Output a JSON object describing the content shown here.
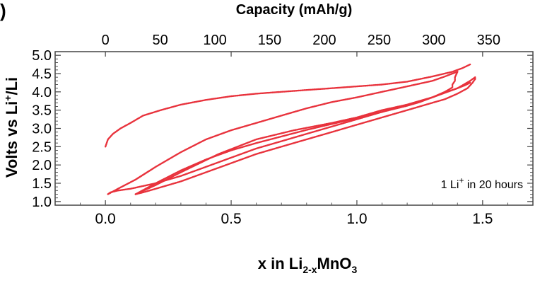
{
  "panel_label": ")",
  "chart_data": {
    "type": "line",
    "title": "",
    "xlabel": "x in Li2-xMnO3",
    "xlabel_parts": {
      "main": "x in Li",
      "sub": "2-x",
      "mid": "MnO",
      "sub2": "3"
    },
    "ylabel": "Volts vs Li+/Li",
    "ylabel_parts": {
      "pre": "Volts vs Li",
      "sup": "+",
      "post": "/Li"
    },
    "x2label": "Capacity (mAh/g)",
    "xlim": [
      -0.2,
      1.7
    ],
    "ylim": [
      0.9,
      5.1
    ],
    "x2_per_x": 229.7,
    "x_ticks": [
      "0.0",
      "0.5",
      "1.0",
      "1.5"
    ],
    "x_tick_values": [
      0.0,
      0.5,
      1.0,
      1.5
    ],
    "x2_ticks": [
      "0",
      "50",
      "100",
      "150",
      "200",
      "250",
      "300",
      "350"
    ],
    "x2_tick_values": [
      0,
      50,
      100,
      150,
      200,
      250,
      300,
      350
    ],
    "y_ticks": [
      "1.0",
      "1.5",
      "2.0",
      "2.5",
      "3.0",
      "3.5",
      "4.0",
      "4.5",
      "5.0"
    ],
    "y_tick_values": [
      1.0,
      1.5,
      2.0,
      2.5,
      3.0,
      3.5,
      4.0,
      4.5,
      5.0
    ],
    "annotation": {
      "pre": "1 Li",
      "sup": "+",
      "post": " in 20 hours"
    },
    "color": "#e8323c",
    "series": [
      {
        "x": [
          0.0,
          0.01,
          0.03,
          0.06,
          0.1,
          0.15,
          0.22,
          0.3,
          0.4,
          0.5,
          0.6,
          0.7,
          0.8,
          0.9,
          1.0,
          1.1,
          1.2,
          1.3,
          1.38,
          1.42,
          1.45
        ],
        "y": [
          2.5,
          2.7,
          2.85,
          3.0,
          3.15,
          3.35,
          3.5,
          3.65,
          3.78,
          3.88,
          3.95,
          4.0,
          4.05,
          4.1,
          4.15,
          4.2,
          4.28,
          4.42,
          4.55,
          4.65,
          4.75
        ]
      },
      {
        "x": [
          1.45,
          1.43,
          1.4,
          1.35,
          1.3,
          1.25,
          1.2,
          1.1,
          1.0,
          0.9,
          0.8,
          0.7,
          0.6,
          0.5,
          0.4,
          0.3,
          0.2,
          0.1,
          0.05,
          0.02,
          0.01
        ],
        "y": [
          4.25,
          4.18,
          4.1,
          3.98,
          3.85,
          3.75,
          3.65,
          3.45,
          3.25,
          3.05,
          2.85,
          2.65,
          2.45,
          2.2,
          1.95,
          1.7,
          1.5,
          1.35,
          1.3,
          1.25,
          1.2
        ]
      },
      {
        "x": [
          0.01,
          0.05,
          0.12,
          0.2,
          0.3,
          0.4,
          0.5,
          0.6,
          0.7,
          0.8,
          0.9,
          1.0,
          1.1,
          1.2,
          1.3,
          1.35,
          1.38,
          1.4
        ],
        "y": [
          1.2,
          1.35,
          1.6,
          1.95,
          2.35,
          2.7,
          2.95,
          3.15,
          3.35,
          3.55,
          3.72,
          3.85,
          4.0,
          4.15,
          4.3,
          4.42,
          4.5,
          4.55
        ]
      },
      {
        "x": [
          1.4,
          1.39,
          1.39,
          1.38,
          1.38,
          1.35,
          1.3,
          1.25,
          1.2,
          1.1,
          1.0,
          0.9,
          0.8,
          0.7,
          0.6,
          0.5,
          0.4,
          0.3,
          0.2,
          0.12
        ],
        "y": [
          4.55,
          4.4,
          4.3,
          4.2,
          4.12,
          4.0,
          3.85,
          3.72,
          3.62,
          3.45,
          3.28,
          3.12,
          2.96,
          2.78,
          2.6,
          2.4,
          2.15,
          1.85,
          1.5,
          1.2
        ]
      },
      {
        "x": [
          0.12,
          0.2,
          0.3,
          0.45,
          0.6,
          0.75,
          0.9,
          1.0,
          1.1,
          1.2,
          1.3,
          1.4,
          1.45,
          1.47,
          1.47
        ],
        "y": [
          1.2,
          1.45,
          1.8,
          2.3,
          2.7,
          2.95,
          3.15,
          3.3,
          3.5,
          3.65,
          3.85,
          4.1,
          4.3,
          4.4,
          4.35
        ]
      },
      {
        "x": [
          1.47,
          1.46,
          1.44,
          1.4,
          1.35,
          1.3,
          1.2,
          1.1,
          1.0,
          0.9,
          0.8,
          0.7,
          0.6,
          0.5,
          0.4,
          0.3,
          0.25,
          0.2,
          0.15,
          0.12
        ],
        "y": [
          4.35,
          4.25,
          4.1,
          3.95,
          3.8,
          3.7,
          3.5,
          3.3,
          3.1,
          2.9,
          2.7,
          2.5,
          2.3,
          2.05,
          1.8,
          1.55,
          1.45,
          1.35,
          1.25,
          1.2
        ]
      }
    ]
  }
}
